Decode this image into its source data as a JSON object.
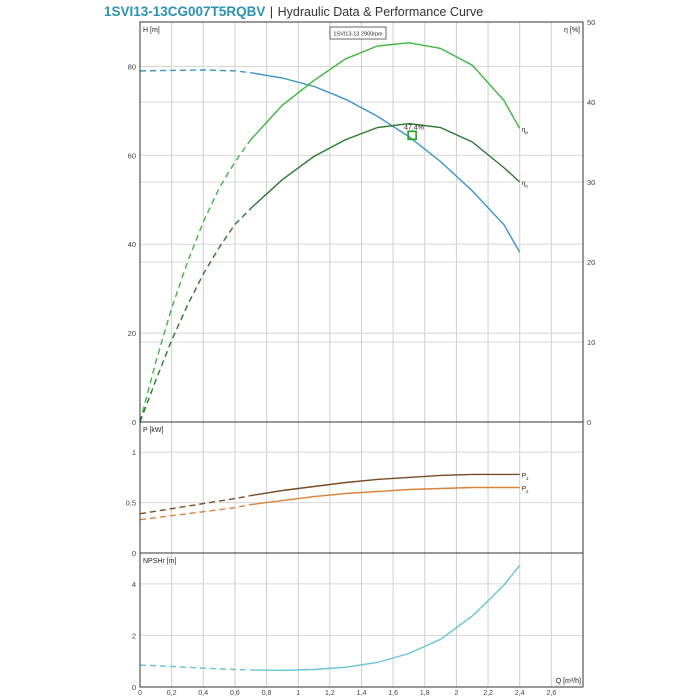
{
  "header": {
    "model": "1SVI13-13CG007T5RQBV",
    "separator": "|",
    "subtitle": "Hydraulic Data & Performance Curve"
  },
  "chart_data": [
    {
      "type": "line",
      "panel": "head-efficiency",
      "box_label": "1SVI13-13 2900rpm",
      "ylabel": "H [m]",
      "y2label": "η [%]",
      "xlim": [
        0,
        2.8
      ],
      "ylim": [
        0,
        90
      ],
      "y2lim": [
        0,
        50
      ],
      "yticks": [
        0,
        20,
        40,
        60,
        80
      ],
      "y2ticks": [
        0,
        10,
        20,
        30,
        40,
        50
      ],
      "grid": true,
      "op_point": {
        "x": 1.72,
        "y": 64.5,
        "label": "47.4%",
        "color": "#1aa31a"
      },
      "series": [
        {
          "key": "head",
          "axis": "left",
          "color": "#3a94c4",
          "dashed_until": 0.7,
          "x": [
            0,
            0.2,
            0.4,
            0.6,
            0.7,
            0.9,
            1.1,
            1.3,
            1.5,
            1.7,
            1.9,
            2.1,
            2.3,
            2.4
          ],
          "y": [
            79.0,
            79.1,
            79.2,
            79.0,
            78.6,
            77.4,
            75.5,
            72.6,
            68.8,
            64.2,
            58.6,
            52.0,
            44.4,
            38.2
          ]
        },
        {
          "key": "eta_p",
          "name": "η",
          "name_sub": "p",
          "axis": "right",
          "color": "#3cb83c",
          "dashed_until": 0.7,
          "x": [
            0,
            0.1,
            0.2,
            0.3,
            0.4,
            0.5,
            0.6,
            0.7,
            0.9,
            1.1,
            1.3,
            1.5,
            1.7,
            1.9,
            2.1,
            2.3,
            2.4
          ],
          "y": [
            0,
            7.5,
            14.2,
            20.0,
            25.0,
            29.2,
            32.5,
            35.3,
            39.6,
            42.7,
            45.4,
            47.0,
            47.4,
            46.7,
            44.6,
            40.2,
            36.7
          ]
        },
        {
          "key": "eta_e",
          "name": "η",
          "name_sub": "e",
          "axis": "right",
          "color": "#2c7a2c",
          "dashed_until": 0.7,
          "x": [
            0,
            0.1,
            0.2,
            0.3,
            0.4,
            0.5,
            0.6,
            0.7,
            0.9,
            1.1,
            1.3,
            1.5,
            1.7,
            1.9,
            2.1,
            2.3,
            2.4
          ],
          "y": [
            0,
            5.2,
            10.2,
            14.6,
            18.5,
            21.8,
            24.7,
            26.7,
            30.3,
            33.2,
            35.3,
            36.8,
            37.3,
            36.8,
            35.0,
            31.8,
            30.0
          ]
        }
      ]
    },
    {
      "type": "line",
      "panel": "power",
      "ylabel": "P [kW]",
      "xlim": [
        0,
        2.8
      ],
      "ylim": [
        0,
        1.3
      ],
      "yticks": [
        0,
        0.5,
        1
      ],
      "ytick_labels": [
        "0",
        "0.5",
        "1"
      ],
      "grid": true,
      "series": [
        {
          "key": "p1",
          "name": "P",
          "name_sub": "1",
          "color": "#7a4a22",
          "dashed_until": 0.7,
          "x": [
            0,
            0.2,
            0.4,
            0.6,
            0.7,
            0.9,
            1.1,
            1.3,
            1.5,
            1.7,
            1.9,
            2.1,
            2.3,
            2.4
          ],
          "y": [
            0.39,
            0.44,
            0.49,
            0.54,
            0.57,
            0.62,
            0.66,
            0.7,
            0.73,
            0.75,
            0.77,
            0.78,
            0.78,
            0.78
          ]
        },
        {
          "key": "p2",
          "name": "P",
          "name_sub": "2",
          "color": "#d9823a",
          "dashed_until": 0.7,
          "x": [
            0,
            0.2,
            0.4,
            0.6,
            0.7,
            0.9,
            1.1,
            1.3,
            1.5,
            1.7,
            1.9,
            2.1,
            2.3,
            2.4
          ],
          "y": [
            0.33,
            0.37,
            0.41,
            0.45,
            0.48,
            0.52,
            0.56,
            0.59,
            0.61,
            0.63,
            0.64,
            0.65,
            0.65,
            0.65
          ]
        }
      ]
    },
    {
      "type": "line",
      "panel": "npsh",
      "ylabel": "NPSHr [m]",
      "xlabel": "Q [m³/h]",
      "xlim": [
        0,
        2.8
      ],
      "ylim": [
        0,
        5.2
      ],
      "yticks": [
        0,
        2,
        4
      ],
      "xticks": [
        0,
        0.2,
        0.4,
        0.6,
        0.8,
        1,
        1.2,
        1.4,
        1.6,
        1.8,
        2,
        2.2,
        2.4,
        2.6
      ],
      "xtick_labels": [
        "0",
        "0,2",
        "0,4",
        "0,6",
        "0,8",
        "1",
        "1,2",
        "1,4",
        "1,6",
        "1,8",
        "2",
        "2,2",
        "2,4",
        "2,6"
      ],
      "grid": true,
      "series": [
        {
          "key": "npsh",
          "color": "#66c4d4",
          "dashed_until": 0.7,
          "x": [
            0,
            0.2,
            0.4,
            0.6,
            0.7,
            0.9,
            1.1,
            1.3,
            1.5,
            1.7,
            1.9,
            2.1,
            2.2,
            2.3,
            2.4
          ],
          "y": [
            0.85,
            0.8,
            0.73,
            0.68,
            0.66,
            0.65,
            0.68,
            0.77,
            0.95,
            1.3,
            1.85,
            2.75,
            3.35,
            3.95,
            4.72
          ]
        }
      ]
    }
  ]
}
